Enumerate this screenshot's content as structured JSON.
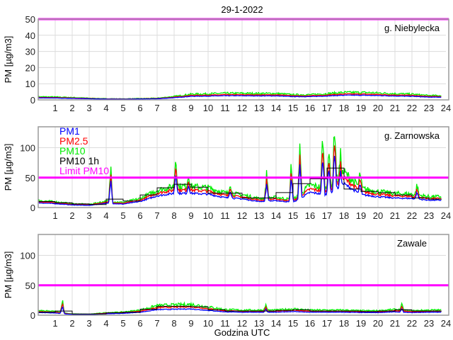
{
  "chart_data": {
    "type": "line",
    "title": "29-1-2022",
    "xlabel": "Godzina UTC",
    "ylabel": "PM [µg/m3]",
    "xlim": [
      0,
      24
    ],
    "x_ticks": [
      "1",
      "2",
      "3",
      "4",
      "5",
      "6",
      "7",
      "8",
      "9",
      "10",
      "11",
      "12",
      "13",
      "14",
      "15",
      "16",
      "17",
      "18",
      "19",
      "20",
      "21",
      "22",
      "23",
      "24"
    ],
    "legend": {
      "placement": "top-left (middle panel)",
      "entries": [
        {
          "name": "PM1",
          "color": "#0000ff"
        },
        {
          "name": "PM2.5",
          "color": "#ff0000"
        },
        {
          "name": "PM10",
          "color": "#00ee00"
        },
        {
          "name": "PM10 1h",
          "color": "#000000"
        },
        {
          "name": "Limit PM10",
          "color": "#ff00ff"
        }
      ]
    },
    "limit_pm10": 50,
    "panels": [
      {
        "station": "g. Niebylecka",
        "ylim": [
          0,
          50
        ],
        "y_ticks": [
          "0",
          "10",
          "20",
          "30",
          "40",
          "50"
        ],
        "pm10_hourly_base": [
          1.8,
          1.7,
          1.4,
          1.0,
          0.7,
          0.6,
          0.8,
          1.0,
          2.0,
          3.3,
          3.5,
          3.8,
          3.8,
          3.7,
          3.7,
          3.0,
          3.0,
          3.6,
          4.3,
          4.3,
          4.0,
          3.6,
          3.3,
          2.5
        ],
        "spikes": [],
        "pm25_ratio": 0.8,
        "pm1_ratio": 0.65,
        "pm10_1h": []
      },
      {
        "station": "g. Zarnowska",
        "ylim": [
          0,
          135
        ],
        "y_ticks": [
          "0",
          "50",
          "100"
        ],
        "pm10_hourly_base": [
          11,
          9,
          6,
          5,
          10,
          8,
          14,
          27,
          33,
          33,
          31,
          23,
          20,
          14,
          16,
          12,
          35,
          30,
          55,
          30,
          25,
          22,
          21,
          17
        ],
        "spikes": [
          [
            4.27,
            65
          ],
          [
            8.1,
            82
          ],
          [
            8.85,
            52
          ],
          [
            11.3,
            40
          ],
          [
            13.45,
            55
          ],
          [
            14.9,
            70
          ],
          [
            15.4,
            100
          ],
          [
            16.75,
            118
          ],
          [
            17.1,
            95
          ],
          [
            17.45,
            135
          ],
          [
            17.8,
            80
          ],
          [
            18.95,
            55
          ],
          [
            22.3,
            36
          ]
        ],
        "pm25_ratio": 0.85,
        "pm1_ratio": 0.7,
        "pm10_1h": [
          10,
          8,
          6,
          5,
          14,
          11,
          21,
          33,
          39,
          34,
          24,
          24,
          16,
          16,
          25,
          40,
          48,
          66,
          31,
          27,
          25,
          21,
          16,
          14
        ]
      },
      {
        "station": "Zawale",
        "ylim": [
          0,
          135
        ],
        "y_ticks": [
          "0",
          "50",
          "100"
        ],
        "pm10_hourly_base": [
          7,
          6,
          2,
          1.5,
          4,
          5,
          8,
          15,
          16,
          17,
          13,
          9,
          8,
          8,
          8,
          10,
          8,
          8,
          8,
          7,
          7,
          9,
          7,
          8
        ],
        "spikes": [
          [
            1.42,
            24
          ],
          [
            13.4,
            16
          ],
          [
            21.4,
            16
          ]
        ],
        "pm25_ratio": 0.8,
        "pm1_ratio": 0.6,
        "pm10_1h": [
          5,
          7,
          2,
          2,
          4,
          5,
          10,
          15,
          15,
          14,
          9,
          7,
          7,
          7,
          8,
          9,
          7,
          7,
          7,
          6,
          7,
          9,
          7,
          7
        ]
      }
    ]
  }
}
